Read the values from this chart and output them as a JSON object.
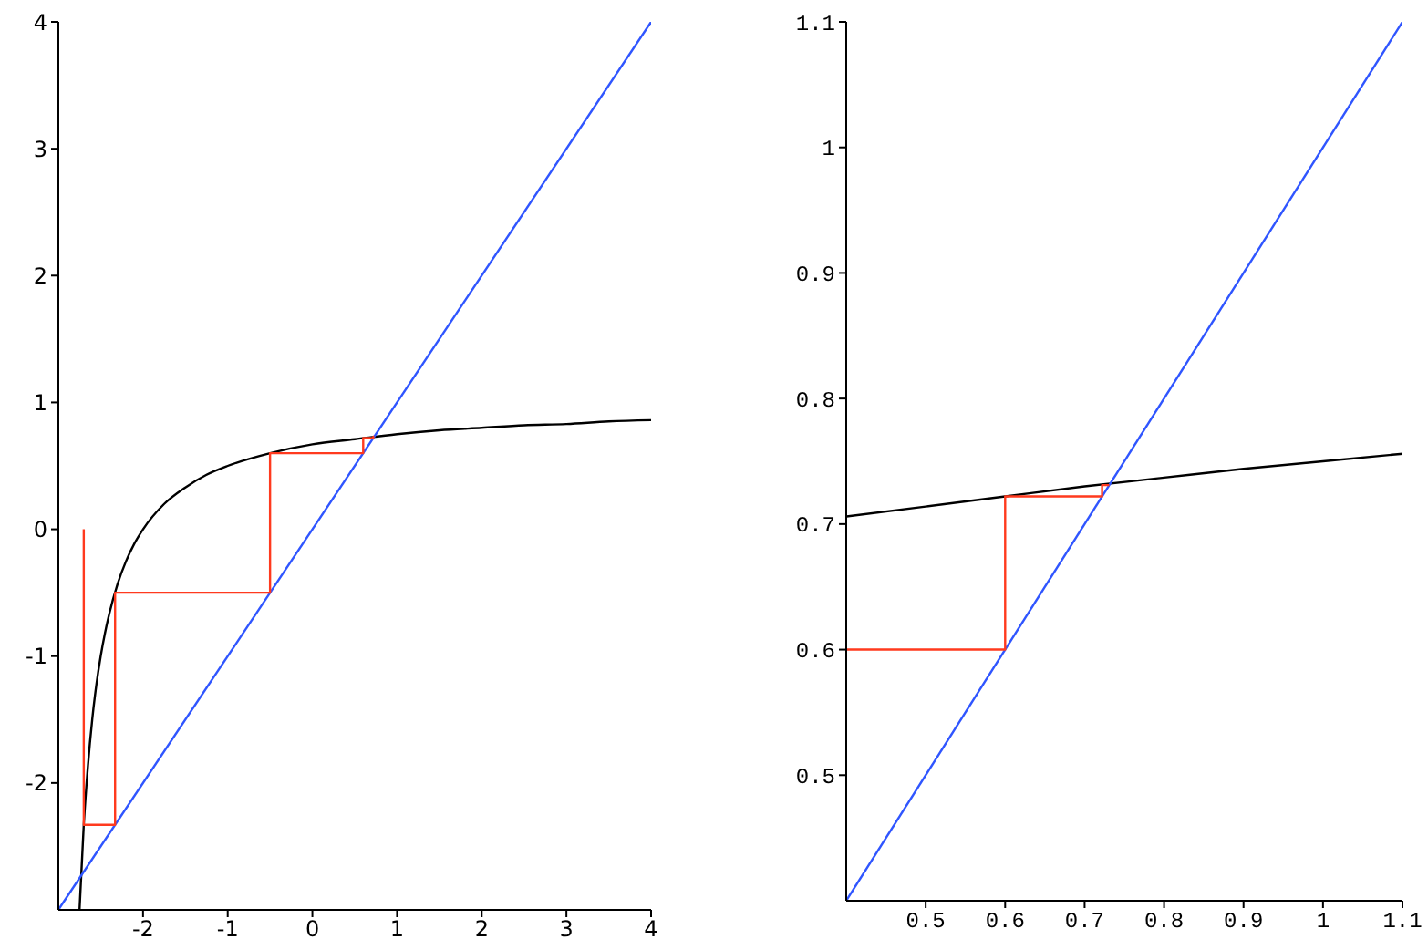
{
  "chart_data": [
    {
      "type": "line",
      "xlim": [
        -3,
        4
      ],
      "ylim": [
        -3,
        4
      ],
      "xticks": [
        -2,
        -1,
        0,
        1,
        2,
        3,
        4
      ],
      "yticks": [
        -2,
        -1,
        0,
        1,
        2,
        3,
        4
      ],
      "line_style": "solid",
      "series": [
        {
          "color": "#000000",
          "x": [
            -2.75,
            -2.7,
            -2.65,
            -2.6,
            -2.55,
            -2.5,
            -2.45,
            -2.4,
            -2.3,
            -2.2,
            -2.1,
            -2,
            -1.75,
            -1.5,
            -1.25,
            -1,
            -0.5,
            0,
            0.5,
            1,
            1.5,
            2,
            2.5,
            3,
            3.5,
            4
          ],
          "values": [
            -3,
            -2.33,
            -1.86,
            -1.5,
            -1.22,
            -1,
            -0.82,
            -0.67,
            -0.43,
            -0.25,
            -0.11,
            0,
            0.2,
            0.33,
            0.43,
            0.5,
            0.6,
            0.67,
            0.71,
            0.75,
            0.78,
            0.8,
            0.82,
            0.83,
            0.85,
            0.86
          ]
        },
        {
          "color": "#2f55ff",
          "x": [
            -3,
            4
          ],
          "values": [
            -3,
            4
          ]
        },
        {
          "color": "#ff3a1e",
          "x": [
            -2.7,
            -2.7,
            -2.33,
            -2.33,
            -0.5,
            -0.5,
            0.6,
            0.6,
            0.72,
            0.72,
            0.73
          ],
          "values": [
            0,
            -2.33,
            -2.33,
            -0.5,
            -0.5,
            0.6,
            0.6,
            0.72,
            0.72,
            0.73,
            0.73
          ]
        }
      ]
    },
    {
      "type": "line",
      "xlim": [
        0.4,
        1.1
      ],
      "ylim": [
        0.4,
        1.1
      ],
      "xticks": [
        0.5,
        0.6,
        0.7,
        0.8,
        0.9,
        1,
        1.1
      ],
      "yticks": [
        0.5,
        0.6,
        0.7,
        0.8,
        0.9,
        1,
        1.1
      ],
      "line_style": "solid",
      "series": [
        {
          "color": "#000000",
          "x": [
            0.4,
            0.5,
            0.6,
            0.7,
            0.8,
            0.9,
            1,
            1.1
          ],
          "values": [
            0.706,
            0.714,
            0.722,
            0.73,
            0.737,
            0.744,
            0.75,
            0.756
          ]
        },
        {
          "color": "#2f55ff",
          "x": [
            0.4,
            1.1
          ],
          "values": [
            0.4,
            1.1
          ]
        },
        {
          "color": "#ff3a1e",
          "x": [
            0.4,
            0.6,
            0.6,
            0.722,
            0.722,
            0.731
          ],
          "values": [
            0.6,
            0.6,
            0.722,
            0.722,
            0.731,
            0.731
          ]
        }
      ]
    }
  ]
}
